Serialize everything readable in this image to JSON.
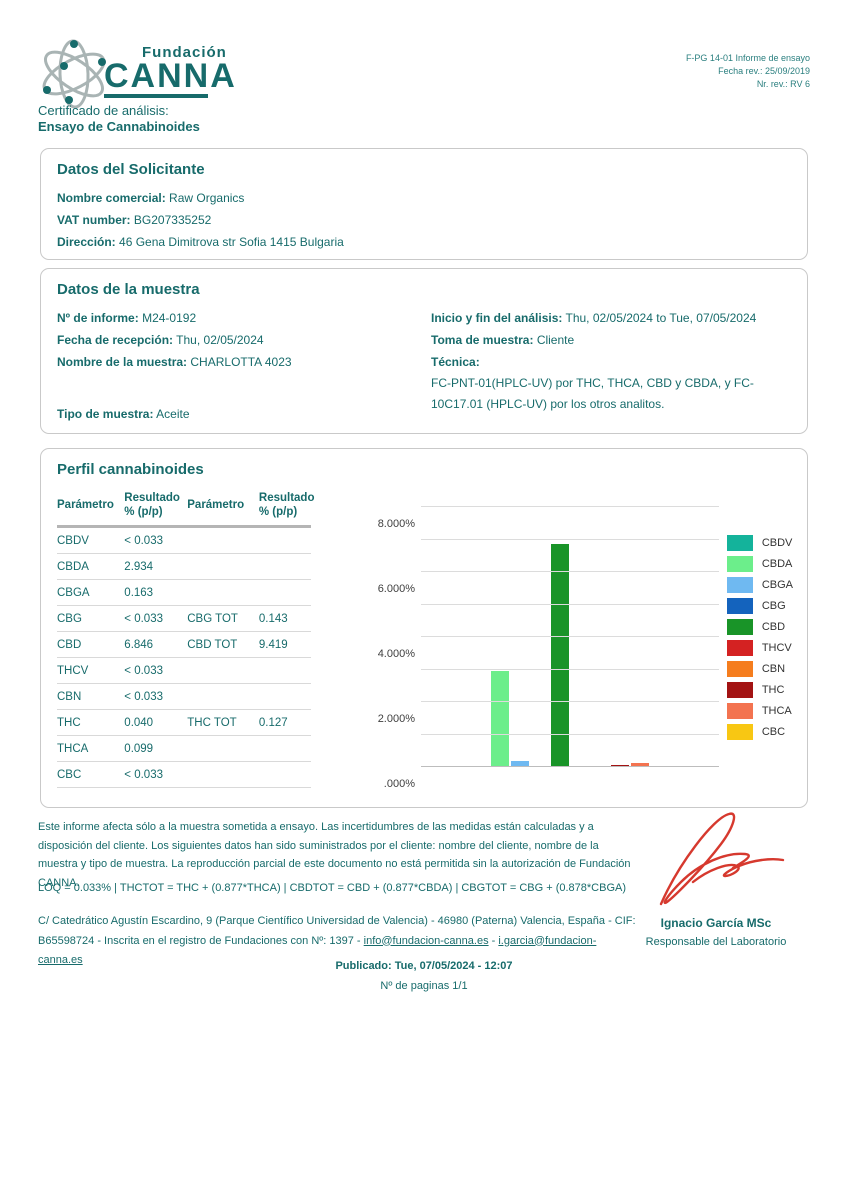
{
  "header": {
    "logo_top": "Fundación",
    "logo_main": "CANNA",
    "meta": [
      "F-PG 14-01 Informe de ensayo",
      "Fecha rev.: 25/09/2019",
      "Nr. rev.: RV 6"
    ],
    "subtitle_line1": "Certificado de análisis:",
    "subtitle_line2": "Ensayo de Cannabinoides"
  },
  "solicitante": {
    "title": "Datos del Solicitante",
    "fields": [
      {
        "label": "Nombre comercial:",
        "value": "Raw Organics"
      },
      {
        "label": "VAT number:",
        "value": "BG207335252"
      },
      {
        "label": "Dirección:",
        "value": "46 Gena Dimitrova str Sofia 1415 Bulgaria"
      }
    ]
  },
  "muestra": {
    "title": "Datos de la muestra",
    "left_fields": [
      {
        "label": "Nº de informe:",
        "value": "M24-0192"
      },
      {
        "label": "Fecha de recepción:",
        "value": "Thu, 02/05/2024"
      },
      {
        "label": "Nombre de la muestra:",
        "value": "CHARLOTTA 4023"
      }
    ],
    "right_fields": [
      {
        "label": "Inicio y fin del análisis:",
        "value": "Thu, 02/05/2024 to Tue, 07/05/2024"
      },
      {
        "label": "Toma de muestra:",
        "value": "Cliente"
      }
    ],
    "tecnica_label": "Técnica:",
    "tecnica_value": "FC-PNT-01(HPLC-UV) por THC, THCA, CBD y CBDA, y FC-10C17.01 (HPLC-UV) por los otros analitos.",
    "tipo_label": "Tipo de muestra:",
    "tipo_value": "Aceite"
  },
  "perfil": {
    "title": "Perfil cannabinoides",
    "table": {
      "headers": [
        "Parámetro",
        "Resultado\n% (p/p)",
        "Parámetro",
        "Resultado\n% (p/p)"
      ],
      "rows": [
        [
          "CBDV",
          "< 0.033",
          "",
          ""
        ],
        [
          "CBDA",
          "2.934",
          "",
          ""
        ],
        [
          "CBGA",
          "0.163",
          "",
          ""
        ],
        [
          "CBG",
          "< 0.033",
          "CBG TOT",
          "0.143"
        ],
        [
          "CBD",
          "6.846",
          "CBD TOT",
          "9.419"
        ],
        [
          "THCV",
          "< 0.033",
          "",
          ""
        ],
        [
          "CBN",
          "< 0.033",
          "",
          ""
        ],
        [
          "THC",
          "0.040",
          "THC TOT",
          "0.127"
        ],
        [
          "THCA",
          "0.099",
          "",
          ""
        ],
        [
          "CBC",
          "< 0.033",
          "",
          ""
        ]
      ]
    }
  },
  "chart_data": {
    "type": "bar",
    "title": "",
    "xlabel": "",
    "ylabel": "",
    "categories": [
      "CBDV",
      "CBDA",
      "CBGA",
      "CBG",
      "CBD",
      "THCV",
      "CBN",
      "THC",
      "THCA",
      "CBC"
    ],
    "values": [
      0,
      2.934,
      0.163,
      0,
      6.846,
      0,
      0,
      0.04,
      0.099,
      0
    ],
    "colors": [
      "#14b39b",
      "#6cee8b",
      "#6fb9f1",
      "#1463bd",
      "#199428",
      "#d42222",
      "#f57d1e",
      "#a31313",
      "#f37350",
      "#f8c713"
    ],
    "ylim": [
      0,
      8
    ],
    "grid_step": 1,
    "grid": true,
    "legend_position": "right",
    "yticks": [
      {
        "v": 8,
        "label": "8.000%"
      },
      {
        "v": 6,
        "label": "6.000%"
      },
      {
        "v": 4,
        "label": "4.000%"
      },
      {
        "v": 2,
        "label": "2.000%"
      },
      {
        "v": 0,
        "label": ".000%"
      }
    ]
  },
  "footer": {
    "disclaimer": "Este informe afecta sólo a la muestra sometida a ensayo. Las incertidumbres de las medidas están calculadas y a disposición del cliente. Los siguientes datos han sido suministrados por el cliente: nombre del cliente, nombre de la muestra y tipo de muestra. La reproducción parcial de este documento no está permitida sin la autorización de Fundación CANNA.",
    "loq_line": "LOQ = 0.033% | THCTOT = THC + (0.877*THCA) | CBDTOT = CBD + (0.877*CBDA) | CBGTOT = CBG + (0.878*CBGA)",
    "address_text": "C/ Catedrático Agustín Escardino, 9 (Parque Científico Universidad de Valencia) - 46980 (Paterna) Valencia, España - CIF: B65598724 - Inscrita en el registro de Fundaciones con Nº: 1397 - ",
    "email1": "info@fundacion-canna.es",
    "address_sep": " - ",
    "email2": "i.garcia@fundacion-canna.es",
    "signer_name": "Ignacio García MSc",
    "signer_role": "Responsable del Laboratorio",
    "published": "Publicado: Tue, 07/05/2024 - 12:07",
    "pages": "Nº de paginas 1/1"
  },
  "colors": {
    "brand_teal": "#176b6b",
    "signature_red": "#d6392e",
    "box_border": "#c9c9c9"
  }
}
